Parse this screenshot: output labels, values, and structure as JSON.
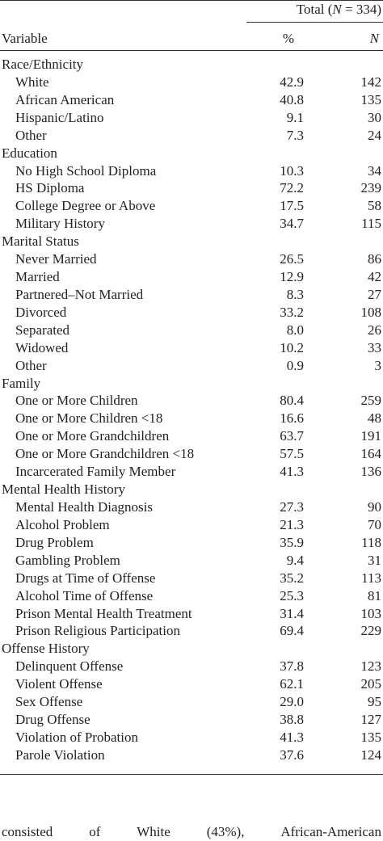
{
  "header": {
    "total": [
      "Total (",
      "N",
      " = 334)"
    ],
    "variable": "Variable",
    "pct": "%",
    "n": "N"
  },
  "groups": [
    {
      "label": "Race/Ethnicity",
      "rows": [
        [
          "White",
          "42.9",
          "142"
        ],
        [
          "African American",
          "40.8",
          "135"
        ],
        [
          "Hispanic/Latino",
          "9.1",
          "30"
        ],
        [
          "Other",
          "7.3",
          "24"
        ]
      ]
    },
    {
      "label": "Education",
      "rows": [
        [
          "No High School Diploma",
          "10.3",
          "34"
        ],
        [
          "HS Diploma",
          "72.2",
          "239"
        ],
        [
          "College Degree or Above",
          "17.5",
          "58"
        ],
        [
          "Military History",
          "34.7",
          "115"
        ]
      ]
    },
    {
      "label": "Marital Status",
      "rows": [
        [
          "Never Married",
          "26.5",
          "86"
        ],
        [
          "Married",
          "12.9",
          "42"
        ],
        [
          "Partnered–Not Married",
          "8.3",
          "27"
        ],
        [
          "Divorced",
          "33.2",
          "108"
        ],
        [
          "Separated",
          "8.0",
          "26"
        ],
        [
          "Widowed",
          "10.2",
          "33"
        ],
        [
          "Other",
          "0.9",
          "3"
        ]
      ]
    },
    {
      "label": "Family",
      "rows": [
        [
          "One or More Children",
          "80.4",
          "259"
        ],
        [
          "One or More Children <18",
          "16.6",
          "48"
        ],
        [
          "One or More Grandchildren",
          "63.7",
          "191"
        ],
        [
          "One or More Grandchildren <18",
          "57.5",
          "164"
        ],
        [
          "Incarcerated Family Member",
          "41.3",
          "136"
        ]
      ]
    },
    {
      "label": "Mental Health History",
      "rows": [
        [
          "Mental Health Diagnosis",
          "27.3",
          "90"
        ],
        [
          "Alcohol Problem",
          "21.3",
          "70"
        ],
        [
          "Drug Problem",
          "35.9",
          "118"
        ],
        [
          "Gambling Problem",
          "9.4",
          "31"
        ],
        [
          "Drugs at Time of Offense",
          "35.2",
          "113"
        ],
        [
          "Alcohol Time of Offense",
          "25.3",
          "81"
        ],
        [
          "Prison Mental Health Treatment",
          "31.4",
          "103"
        ],
        [
          "Prison Religious Participation",
          "69.4",
          "229"
        ]
      ]
    },
    {
      "label": "Offense History",
      "rows": [
        [
          "Delinquent Offense",
          "37.8",
          "123"
        ],
        [
          "Violent Offense",
          "62.1",
          "205"
        ],
        [
          "Sex Offense",
          "29.0",
          "95"
        ],
        [
          "Drug Offense",
          "38.8",
          "127"
        ],
        [
          "Violation of Probation",
          "41.3",
          "135"
        ],
        [
          "Parole Violation",
          "37.6",
          "124"
        ]
      ]
    }
  ],
  "footer_text": "consisted of White (43%), African-American"
}
